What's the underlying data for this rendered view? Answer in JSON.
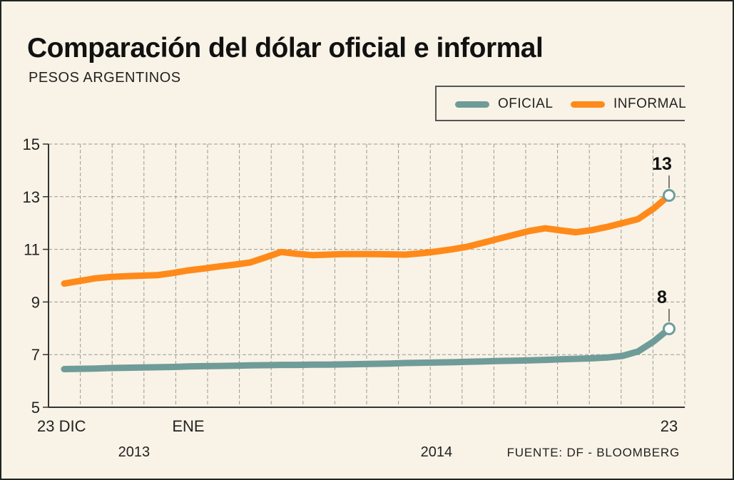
{
  "title": "Comparación del dólar oficial e informal",
  "subtitle": "PESOS ARGENTINOS",
  "source": "FUENTE: DF - BLOOMBERG",
  "legend": {
    "oficial": "OFICIAL",
    "informal": "INFORMAL"
  },
  "colors": {
    "oficial": "#6f9c98",
    "informal": "#ff8a1a",
    "grid": "#9a9a9a",
    "background": "#f8f3e6"
  },
  "chart_data": {
    "type": "line",
    "title": "Comparación del dólar oficial e informal",
    "subtitle": "PESOS ARGENTINOS",
    "ylim": [
      5,
      15
    ],
    "yticks": [
      5,
      7,
      9,
      11,
      13,
      15
    ],
    "xtick_labels": [
      {
        "index": 0,
        "label": "23 DIC"
      },
      {
        "index": 8,
        "label": "ENE"
      },
      {
        "index": 39,
        "label": "23"
      }
    ],
    "year_labels": [
      {
        "index": 4.5,
        "label": "2013"
      },
      {
        "index": 24,
        "label": "2014"
      }
    ],
    "grid": "vertical and horizontal dashed",
    "legend_position": "top-right",
    "series": [
      {
        "name": "INFORMAL",
        "color": "#ff8a1a",
        "end_label": "13",
        "values": [
          9.7,
          9.8,
          9.9,
          9.95,
          9.98,
          10.0,
          10.02,
          10.1,
          10.2,
          10.27,
          10.35,
          10.42,
          10.5,
          10.7,
          10.9,
          10.83,
          10.78,
          10.8,
          10.82,
          10.82,
          10.82,
          10.81,
          10.8,
          10.85,
          10.92,
          11.0,
          11.1,
          11.25,
          11.4,
          11.55,
          11.7,
          11.8,
          11.72,
          11.65,
          11.73,
          11.85,
          12.0,
          12.15,
          12.55,
          13.05
        ]
      },
      {
        "name": "OFICIAL",
        "color": "#6f9c98",
        "end_label": "8",
        "values": [
          6.45,
          6.46,
          6.47,
          6.49,
          6.5,
          6.51,
          6.52,
          6.53,
          6.55,
          6.56,
          6.57,
          6.58,
          6.59,
          6.6,
          6.61,
          6.61,
          6.62,
          6.62,
          6.63,
          6.64,
          6.65,
          6.66,
          6.68,
          6.69,
          6.7,
          6.71,
          6.73,
          6.74,
          6.76,
          6.77,
          6.78,
          6.8,
          6.82,
          6.84,
          6.86,
          6.89,
          6.95,
          7.12,
          7.5,
          7.98
        ]
      }
    ]
  }
}
